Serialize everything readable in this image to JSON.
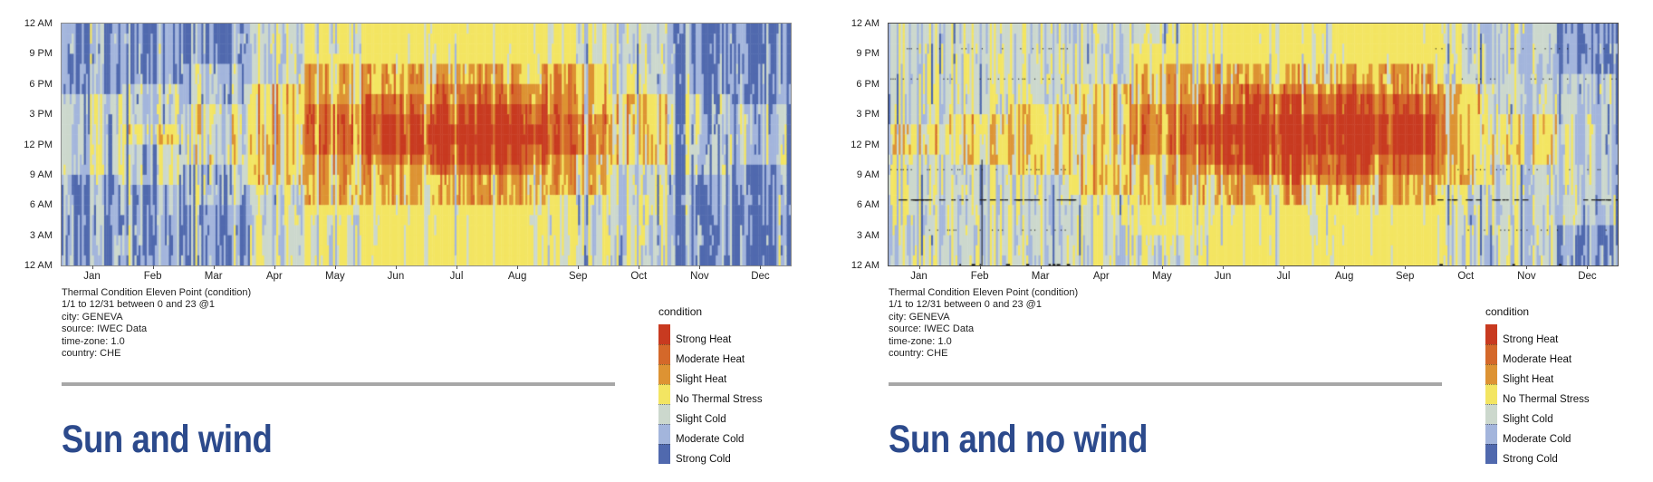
{
  "page": {
    "background": "#ffffff"
  },
  "title_color": "#2c4a8c",
  "metadata_lines": [
    "Thermal Condition Eleven Point (condition)",
    "1/1 to 12/31 between 0 and 23 @1",
    "city: GENEVA",
    "source: IWEC Data",
    "time-zone: 1.0",
    "country: CHE"
  ],
  "legend": {
    "header": "condition",
    "items": [
      {
        "label": "Strong Heat",
        "color": "#c83a20"
      },
      {
        "label": "Moderate Heat",
        "color": "#d4682a"
      },
      {
        "label": "Slight Heat",
        "color": "#dd9333"
      },
      {
        "label": "No Thermal Stress",
        "color": "#f3e562"
      },
      {
        "label": "Slight Cold",
        "color": "#ccd8cd"
      },
      {
        "label": "Moderate Cold",
        "color": "#a3b5dc"
      },
      {
        "label": "Strong Cold",
        "color": "#5069ae"
      }
    ]
  },
  "chart_data": [
    {
      "type": "heatmap",
      "section_title": "Sun and wind",
      "title": "Thermal Condition Eleven Point (condition)",
      "x_tick_labels": [
        "Jan",
        "Feb",
        "Mar",
        "Apr",
        "May",
        "Jun",
        "Jul",
        "Aug",
        "Sep",
        "Oct",
        "Nov",
        "Dec"
      ],
      "y_tick_labels_top_to_bottom": [
        "12 AM",
        "9 PM",
        "6 PM",
        "3 PM",
        "12 PM",
        "9 AM",
        "6 AM",
        "3 AM",
        "12 AM"
      ],
      "conditions_scale_hot_to_cold": [
        "Strong Heat",
        "Moderate Heat",
        "Slight Heat",
        "No Thermal Stress",
        "Slight Cold",
        "Moderate Cold",
        "Strong Cold"
      ],
      "grid_note": "typical condition index (0=Strong Heat..6=Strong Cold) per month, hours 0-23 from midnight",
      "condition_by_month_hour": [
        [
          5,
          5,
          5,
          5,
          5,
          5,
          5,
          5,
          5,
          4,
          4,
          4,
          4,
          4,
          4,
          4,
          4,
          5,
          5,
          5,
          5,
          5,
          5,
          5
        ],
        [
          5,
          5,
          5,
          5,
          5,
          5,
          5,
          5,
          4,
          4,
          4,
          4,
          3,
          3,
          4,
          4,
          4,
          4,
          5,
          5,
          5,
          5,
          5,
          5
        ],
        [
          5,
          5,
          5,
          5,
          5,
          5,
          4,
          4,
          4,
          4,
          3,
          3,
          3,
          3,
          3,
          3,
          4,
          4,
          4,
          4,
          5,
          5,
          5,
          5
        ],
        [
          4,
          4,
          4,
          4,
          4,
          4,
          4,
          4,
          3,
          3,
          3,
          3,
          3,
          3,
          3,
          3,
          3,
          3,
          4,
          4,
          4,
          4,
          4,
          4
        ],
        [
          4,
          4,
          4,
          4,
          4,
          3,
          3,
          3,
          3,
          3,
          3,
          2,
          2,
          2,
          2,
          2,
          3,
          3,
          3,
          3,
          3,
          4,
          4,
          4
        ],
        [
          3,
          3,
          3,
          3,
          3,
          3,
          3,
          3,
          3,
          3,
          2,
          1,
          1,
          1,
          1,
          2,
          2,
          3,
          3,
          3,
          3,
          3,
          3,
          3
        ],
        [
          3,
          3,
          3,
          3,
          3,
          3,
          3,
          3,
          3,
          2,
          1,
          1,
          0,
          0,
          1,
          1,
          2,
          2,
          3,
          3,
          3,
          3,
          3,
          3
        ],
        [
          3,
          3,
          3,
          3,
          3,
          3,
          3,
          3,
          3,
          2,
          1,
          1,
          0,
          0,
          1,
          1,
          2,
          2,
          3,
          3,
          3,
          3,
          3,
          3
        ],
        [
          4,
          4,
          4,
          4,
          4,
          4,
          4,
          3,
          3,
          3,
          3,
          2,
          2,
          2,
          2,
          3,
          3,
          3,
          3,
          3,
          4,
          4,
          4,
          4
        ],
        [
          4,
          4,
          4,
          4,
          4,
          4,
          4,
          4,
          4,
          4,
          3,
          3,
          3,
          3,
          3,
          3,
          3,
          4,
          4,
          4,
          4,
          4,
          4,
          4
        ],
        [
          5,
          5,
          5,
          5,
          5,
          5,
          5,
          5,
          5,
          4,
          4,
          4,
          4,
          4,
          4,
          4,
          4,
          5,
          5,
          5,
          5,
          5,
          5,
          5
        ],
        [
          5,
          5,
          5,
          5,
          5,
          5,
          5,
          5,
          5,
          5,
          4,
          4,
          4,
          4,
          4,
          4,
          5,
          5,
          5,
          5,
          5,
          5,
          5,
          5
        ]
      ],
      "seed": 11,
      "cold_spikes": true,
      "black_marks": false,
      "forced_bands": [
        {
          "m": 0,
          "d": 11,
          "len": 1,
          "cond": 6
        },
        {
          "m": 1,
          "d": 2,
          "len": 1,
          "cond": 6
        },
        {
          "m": 3,
          "d": 14,
          "len": 1,
          "cond": 1,
          "h0": 10,
          "h1": 17
        },
        {
          "m": 8,
          "d": 3,
          "len": 2,
          "cond": 0,
          "h0": 11,
          "h1": 15
        },
        {
          "m": 10,
          "d": 3,
          "len": 5,
          "cond": 6
        },
        {
          "m": 10,
          "d": 20,
          "len": 1,
          "cond": 6
        },
        {
          "m": 11,
          "d": 28,
          "len": 2,
          "cond": 6
        }
      ]
    },
    {
      "type": "heatmap",
      "section_title": "Sun and no wind",
      "title": "Thermal Condition Eleven Point (condition)",
      "x_tick_labels": [
        "Jan",
        "Feb",
        "Mar",
        "Apr",
        "May",
        "Jun",
        "Jul",
        "Aug",
        "Sep",
        "Oct",
        "Nov",
        "Dec"
      ],
      "y_tick_labels_top_to_bottom": [
        "12 AM",
        "9 PM",
        "6 PM",
        "3 PM",
        "12 PM",
        "9 AM",
        "6 AM",
        "3 AM",
        "12 AM"
      ],
      "conditions_scale_hot_to_cold": [
        "Strong Heat",
        "Moderate Heat",
        "Slight Heat",
        "No Thermal Stress",
        "Slight Cold",
        "Moderate Cold",
        "Strong Cold"
      ],
      "grid_note": "typical condition index (0=Strong Heat..6=Strong Cold) per month, hours 0-23 from midnight",
      "condition_by_month_hour": [
        [
          4,
          4,
          4,
          4,
          4,
          4,
          4,
          4,
          4,
          4,
          4,
          3,
          3,
          3,
          4,
          4,
          4,
          4,
          4,
          4,
          4,
          4,
          4,
          4
        ],
        [
          4,
          4,
          4,
          4,
          4,
          4,
          4,
          4,
          4,
          4,
          3,
          3,
          3,
          3,
          3,
          4,
          4,
          4,
          4,
          4,
          4,
          4,
          4,
          4
        ],
        [
          4,
          4,
          4,
          4,
          4,
          4,
          4,
          4,
          4,
          3,
          3,
          3,
          3,
          3,
          3,
          3,
          4,
          4,
          4,
          4,
          4,
          4,
          4,
          4
        ],
        [
          4,
          4,
          4,
          4,
          4,
          4,
          4,
          3,
          3,
          3,
          3,
          3,
          3,
          3,
          3,
          3,
          3,
          3,
          4,
          4,
          4,
          4,
          4,
          4
        ],
        [
          4,
          4,
          4,
          3,
          3,
          3,
          3,
          3,
          3,
          3,
          3,
          2,
          2,
          2,
          2,
          2,
          3,
          3,
          3,
          3,
          3,
          3,
          4,
          4
        ],
        [
          3,
          3,
          3,
          3,
          3,
          3,
          3,
          3,
          3,
          2,
          1,
          1,
          0,
          0,
          1,
          1,
          2,
          2,
          3,
          3,
          3,
          3,
          3,
          3
        ],
        [
          3,
          3,
          3,
          3,
          3,
          3,
          3,
          3,
          2,
          1,
          1,
          0,
          0,
          0,
          0,
          1,
          1,
          2,
          3,
          3,
          3,
          3,
          3,
          3
        ],
        [
          3,
          3,
          3,
          3,
          3,
          3,
          3,
          3,
          2,
          1,
          1,
          0,
          0,
          0,
          0,
          1,
          1,
          2,
          3,
          3,
          3,
          3,
          3,
          3
        ],
        [
          3,
          3,
          3,
          3,
          3,
          3,
          3,
          3,
          3,
          2,
          2,
          1,
          1,
          1,
          1,
          2,
          2,
          3,
          3,
          3,
          3,
          3,
          3,
          3
        ],
        [
          4,
          4,
          4,
          4,
          4,
          4,
          4,
          4,
          3,
          3,
          3,
          3,
          3,
          3,
          3,
          3,
          3,
          3,
          4,
          4,
          4,
          4,
          4,
          4
        ],
        [
          4,
          4,
          4,
          4,
          4,
          4,
          4,
          4,
          4,
          4,
          3,
          3,
          3,
          3,
          3,
          4,
          4,
          4,
          4,
          4,
          4,
          4,
          4,
          4
        ],
        [
          5,
          5,
          5,
          5,
          4,
          4,
          4,
          4,
          4,
          4,
          4,
          4,
          4,
          4,
          4,
          4,
          4,
          4,
          4,
          5,
          5,
          5,
          5,
          5
        ]
      ],
      "seed": 29,
      "cold_spikes": false,
      "black_marks": true,
      "marks_months": [
        0,
        1,
        2,
        9,
        10,
        11
      ],
      "marks_rows_hours": [
        21,
        18,
        9,
        6,
        3
      ],
      "vline_month_fraction": 1.53,
      "forced_bands": [
        {
          "m": 10,
          "d": 14,
          "len": 4,
          "cond": 5
        },
        {
          "m": 11,
          "d": 29,
          "len": 1,
          "cond": 6
        }
      ]
    }
  ]
}
